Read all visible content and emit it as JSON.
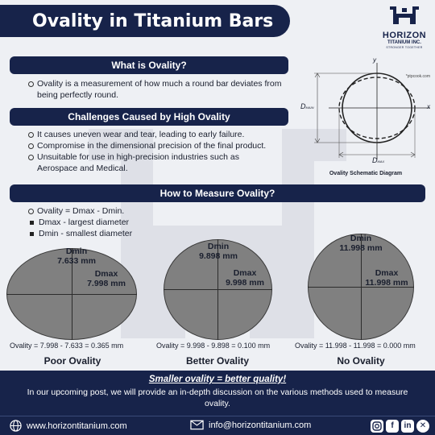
{
  "header": {
    "title": "Ovality in Titanium Bars"
  },
  "logo": {
    "name": "HORIZON",
    "sub": "TITANIUM INC.",
    "tagline": "STRONGER TOGETHER"
  },
  "sections": {
    "what": {
      "heading": "What is Ovality?",
      "bullets": [
        "Ovality is a measurement of how much a round bar deviates from being perfectly round."
      ]
    },
    "challenges": {
      "heading": "Challenges Caused by High Ovality",
      "bullets": [
        "It causes uneven wear and tear, leading to early failure.",
        "Compromise in the dimensional precision of the final product.",
        "Unsuitable for use in high-precision industries such as Aerospace and Medical."
      ]
    },
    "measure": {
      "heading": "How to Measure Ovality?",
      "formula": "Ovality = Dmax - Dmin.",
      "sub_items": [
        "Dmax - largest diameter",
        "Dmin - smallest diameter"
      ]
    }
  },
  "diagram": {
    "source": "*ptpcook.com",
    "label_y": "y",
    "label_x": "x",
    "label_dmin_main": "D",
    "label_dmin_sub": "MAIN",
    "label_dmax_main": "D",
    "label_dmax_sub": "MAX",
    "caption": "Ovality Schematic Diagram"
  },
  "examples": [
    {
      "dmin_label": "Dmin",
      "dmin_value": "7.633 mm",
      "dmax_label": "Dmax",
      "dmax_value": "7.998 mm",
      "equation": "Ovality = 7.998 - 7.633 = 0.365 mm",
      "rating": "Poor Ovality"
    },
    {
      "dmin_label": "Dmin",
      "dmin_value": "9.898 mm",
      "dmax_label": "Dmax",
      "dmax_value": "9.998 mm",
      "equation": "Ovality = 9.998 - 9.898 = 0.100 mm",
      "rating": "Better Ovality"
    },
    {
      "dmin_label": "Dmin",
      "dmin_value": "11.998 mm",
      "dmax_label": "Dmax",
      "dmax_value": "11.998 mm",
      "equation": "Ovality = 11.998 - 11.998 = 0.000 mm",
      "rating": "No Ovality"
    }
  ],
  "footer": {
    "headline": "Smaller ovality = better quality!",
    "note": "In our upcoming post, we will provide an in-depth discussion on the various methods used to measure ovality.",
    "website": "www.horizontitanium.com",
    "email": "info@horizontitanium.com",
    "social_icons": [
      "instagram-icon",
      "facebook-icon",
      "linkedin-icon",
      "x-icon"
    ]
  },
  "colors": {
    "navy": "#17234a",
    "background": "#eef0f4",
    "ellipse_fill": "#808080"
  }
}
